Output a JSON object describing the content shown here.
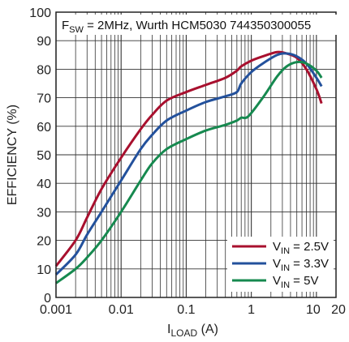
{
  "chart_data": {
    "type": "line",
    "annotation": {
      "prefix": "F",
      "subscript": "SW",
      "text": " = 2MHz, Wurth HCM5030 744350300055"
    },
    "xlabel": {
      "main": "I",
      "subscript": "LOAD",
      "unit": " (A)"
    },
    "ylabel": "EFFICIENCY (%)",
    "x_scale": "log",
    "xlim": [
      0.001,
      20
    ],
    "ylim": [
      0,
      100
    ],
    "x_ticks": [
      {
        "value": 0.001,
        "label": "0.001"
      },
      {
        "value": 0.01,
        "label": "0.01"
      },
      {
        "value": 0.1,
        "label": "0.1"
      },
      {
        "value": 1,
        "label": "1"
      },
      {
        "value": 10,
        "label": "10"
      },
      {
        "value": 20,
        "label": "20"
      }
    ],
    "y_ticks": [
      {
        "value": 0,
        "label": "0"
      },
      {
        "value": 10,
        "label": "10"
      },
      {
        "value": 20,
        "label": "20"
      },
      {
        "value": 30,
        "label": "30"
      },
      {
        "value": 40,
        "label": "40"
      },
      {
        "value": 50,
        "label": "50"
      },
      {
        "value": 60,
        "label": "60"
      },
      {
        "value": 70,
        "label": "70"
      },
      {
        "value": 80,
        "label": "80"
      },
      {
        "value": 90,
        "label": "90"
      },
      {
        "value": 100,
        "label": "100"
      }
    ],
    "grid": true,
    "legend_position": "bottom-right",
    "series": [
      {
        "id": "vin-2-5",
        "legend": {
          "main": "V",
          "subscript": "IN",
          "text": " = 2.5V"
        },
        "color": "#a8102e",
        "x": [
          0.001,
          0.002,
          0.003,
          0.005,
          0.01,
          0.02,
          0.03,
          0.05,
          0.1,
          0.2,
          0.4,
          0.6,
          0.7,
          1,
          1.5,
          2.5,
          3.5,
          5,
          7,
          10,
          12
        ],
        "y": [
          11,
          20,
          28,
          38,
          49,
          59,
          64,
          69,
          72,
          74.5,
          77,
          79.5,
          81,
          83,
          84.5,
          86,
          85.5,
          84,
          80,
          73,
          68
        ]
      },
      {
        "id": "vin-3-3",
        "legend": {
          "main": "V",
          "subscript": "IN",
          "text": " = 3.3V"
        },
        "color": "#23519c",
        "x": [
          0.001,
          0.002,
          0.003,
          0.005,
          0.01,
          0.02,
          0.03,
          0.05,
          0.1,
          0.2,
          0.4,
          0.6,
          0.7,
          1,
          1.5,
          2.5,
          3.5,
          5,
          7,
          10,
          12
        ],
        "y": [
          8,
          15,
          22,
          30,
          41,
          52,
          57,
          62,
          65.5,
          68.5,
          70.5,
          72,
          75,
          79,
          82,
          85,
          85.5,
          84.5,
          82,
          77,
          74
        ]
      },
      {
        "id": "vin-5",
        "legend": {
          "main": "V",
          "subscript": "IN",
          "text": " = 5V"
        },
        "color": "#16894f",
        "x": [
          0.001,
          0.002,
          0.003,
          0.005,
          0.01,
          0.02,
          0.03,
          0.05,
          0.1,
          0.2,
          0.4,
          0.6,
          0.7,
          0.9,
          1.5,
          2.5,
          3.5,
          5,
          7,
          10,
          12
        ],
        "y": [
          5,
          10,
          14,
          20,
          30,
          41,
          47,
          52,
          55.5,
          58.5,
          60.5,
          62,
          63,
          63.5,
          70,
          77.5,
          81,
          82.5,
          82,
          79.5,
          77
        ]
      }
    ]
  }
}
